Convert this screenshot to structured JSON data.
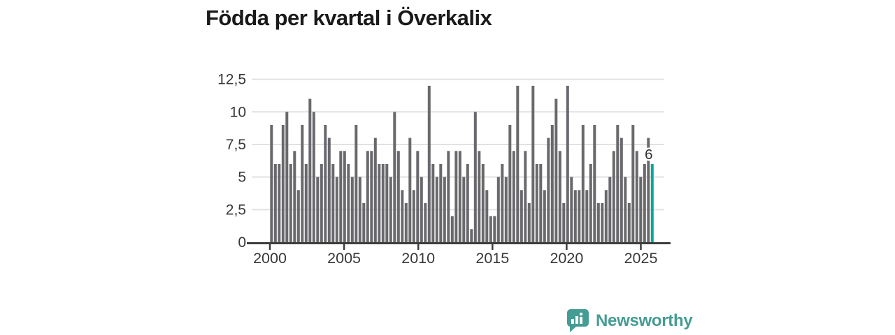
{
  "title": "Födda per kvartal i Överkalix",
  "chart_data": {
    "type": "bar",
    "title": "Födda per kvartal i Överkalix",
    "x_tick_labels": [
      "2000",
      "2005",
      "2010",
      "2015",
      "2020",
      "2025"
    ],
    "y_tick_labels": [
      "0",
      "2,5",
      "5",
      "7,5",
      "10",
      "12,5"
    ],
    "y_ticks": [
      0,
      2.5,
      5,
      7.5,
      10,
      12.5
    ],
    "ylim": [
      0,
      12.5
    ],
    "x_start_label": "2000",
    "values": [
      9,
      6,
      6,
      9,
      10,
      6,
      7,
      4,
      9,
      6,
      11,
      10,
      5,
      6,
      9,
      8,
      6,
      5,
      7,
      7,
      6,
      5,
      9,
      5,
      3,
      7,
      7,
      8,
      6,
      6,
      6,
      5,
      10,
      7,
      4,
      3,
      8,
      4,
      7,
      5,
      3,
      12,
      6,
      5,
      6,
      5,
      7,
      2,
      7,
      7,
      5,
      6,
      1,
      10,
      7,
      6,
      4,
      2,
      2,
      5,
      6,
      5,
      9,
      7,
      12,
      4,
      7,
      3,
      12,
      6,
      6,
      4,
      8,
      9,
      11,
      7,
      3,
      12,
      5,
      4,
      4,
      9,
      4,
      6,
      9,
      3,
      3,
      4,
      5,
      7,
      9,
      8,
      5,
      3,
      9,
      7,
      5,
      6,
      8,
      6
    ],
    "highlight_last_bar": true,
    "last_value_label": "6",
    "grid": true,
    "legend": "none"
  },
  "annotation": {
    "label": "6"
  },
  "logo": {
    "text": "Newsworthy"
  },
  "colors": {
    "background": "#ffffff",
    "bar": "#69696d",
    "highlight": "#0ba79a",
    "grid": "#e2e2e2",
    "axis": "#3d3d3d",
    "tick_text": "#383838",
    "title_text": "#1a1a1a",
    "annotation_text": "#2e2e2e",
    "logo": "#459c93"
  }
}
